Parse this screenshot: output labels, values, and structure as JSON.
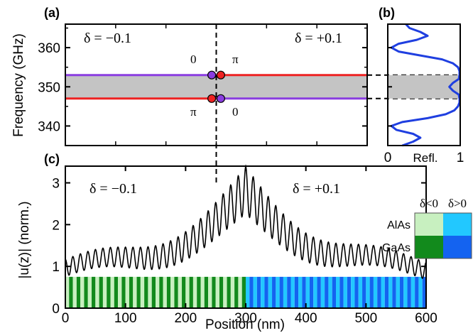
{
  "panels": {
    "a": "(a)",
    "b": "(b)",
    "c": "(c)"
  },
  "chart_data": [
    {
      "panel": "a",
      "type": "line",
      "ylabel": "Frequency (GHz)",
      "xlim": [
        0,
        600
      ],
      "ylim": [
        335,
        366
      ],
      "yticks": [
        340,
        350,
        360
      ],
      "bandgap": [
        347,
        353
      ],
      "bands": [
        {
          "name": "left-upper",
          "x": [
            0,
            300
          ],
          "y": 353,
          "color": "#8a3de0"
        },
        {
          "name": "right-upper",
          "x": [
            300,
            600
          ],
          "y": 353,
          "color": "#ee2222"
        },
        {
          "name": "left-lower",
          "x": [
            0,
            300
          ],
          "y": 347,
          "color": "#ee2222"
        },
        {
          "name": "right-lower",
          "x": [
            300,
            600
          ],
          "y": 347,
          "color": "#8a3de0"
        }
      ],
      "points": [
        {
          "x": 291,
          "y": 353,
          "color": "#8a3de0"
        },
        {
          "x": 309,
          "y": 353,
          "color": "#ee2222"
        },
        {
          "x": 291,
          "y": 347,
          "color": "#ee2222"
        },
        {
          "x": 309,
          "y": 347,
          "color": "#8a3de0"
        }
      ],
      "phase_labels": {
        "upper_left": "0",
        "upper_right": "π",
        "lower_left": "π",
        "lower_right": "0"
      },
      "annotations": {
        "left": "δ = −0.1",
        "right": "δ = +0.1"
      },
      "interface_x": 300
    },
    {
      "panel": "b",
      "type": "line",
      "xlabel": "Refl.",
      "xlim": [
        0,
        1
      ],
      "xticks": [
        0,
        1
      ],
      "ylim": [
        335,
        366
      ],
      "series": [
        {
          "color": "#1f3fe0",
          "freq": [
            335,
            336,
            337,
            338,
            339,
            340,
            341,
            342,
            343,
            344,
            345,
            346,
            347,
            348,
            349,
            350,
            351,
            352,
            353,
            354,
            355,
            356,
            357,
            358,
            359,
            360,
            361,
            362,
            363,
            364,
            365,
            366
          ],
          "refl": [
            0.2,
            0.35,
            0.45,
            0.35,
            0.12,
            0.05,
            0.2,
            0.55,
            0.8,
            0.92,
            0.97,
            0.99,
            0.99,
            0.98,
            0.9,
            0.85,
            0.9,
            0.98,
            0.99,
            0.99,
            0.97,
            0.9,
            0.75,
            0.45,
            0.15,
            0.05,
            0.15,
            0.4,
            0.55,
            0.45,
            0.3,
            0.25
          ]
        }
      ]
    },
    {
      "panel": "c",
      "type": "line",
      "xlabel": "Position (nm)",
      "ylabel": "|u(z)| (norm.)",
      "xlim": [
        0,
        600
      ],
      "ylim": [
        0,
        3.4
      ],
      "xticks": [
        0,
        100,
        200,
        300,
        400,
        500,
        600
      ],
      "yticks": [
        0,
        1,
        2,
        3
      ],
      "envelope": {
        "peak_x": 300,
        "peak_y": 3.25,
        "edge_y": 1.0,
        "decay_nm": 300,
        "ripple": 0.15,
        "min_frac": 0.65
      },
      "layers": {
        "top": 0.75,
        "period_nm": 12.5
      },
      "annotations": {
        "left": "δ = −0.1",
        "right": "δ = +0.1"
      }
    }
  ],
  "legend": {
    "columns": [
      "δ<0",
      "δ>0"
    ],
    "rows": [
      {
        "label": "AlAs",
        "colors": [
          "#c8f0c0",
          "#22c8ff"
        ]
      },
      {
        "label": "GaAs",
        "colors": [
          "#128a1c",
          "#1463f0"
        ]
      }
    ]
  }
}
